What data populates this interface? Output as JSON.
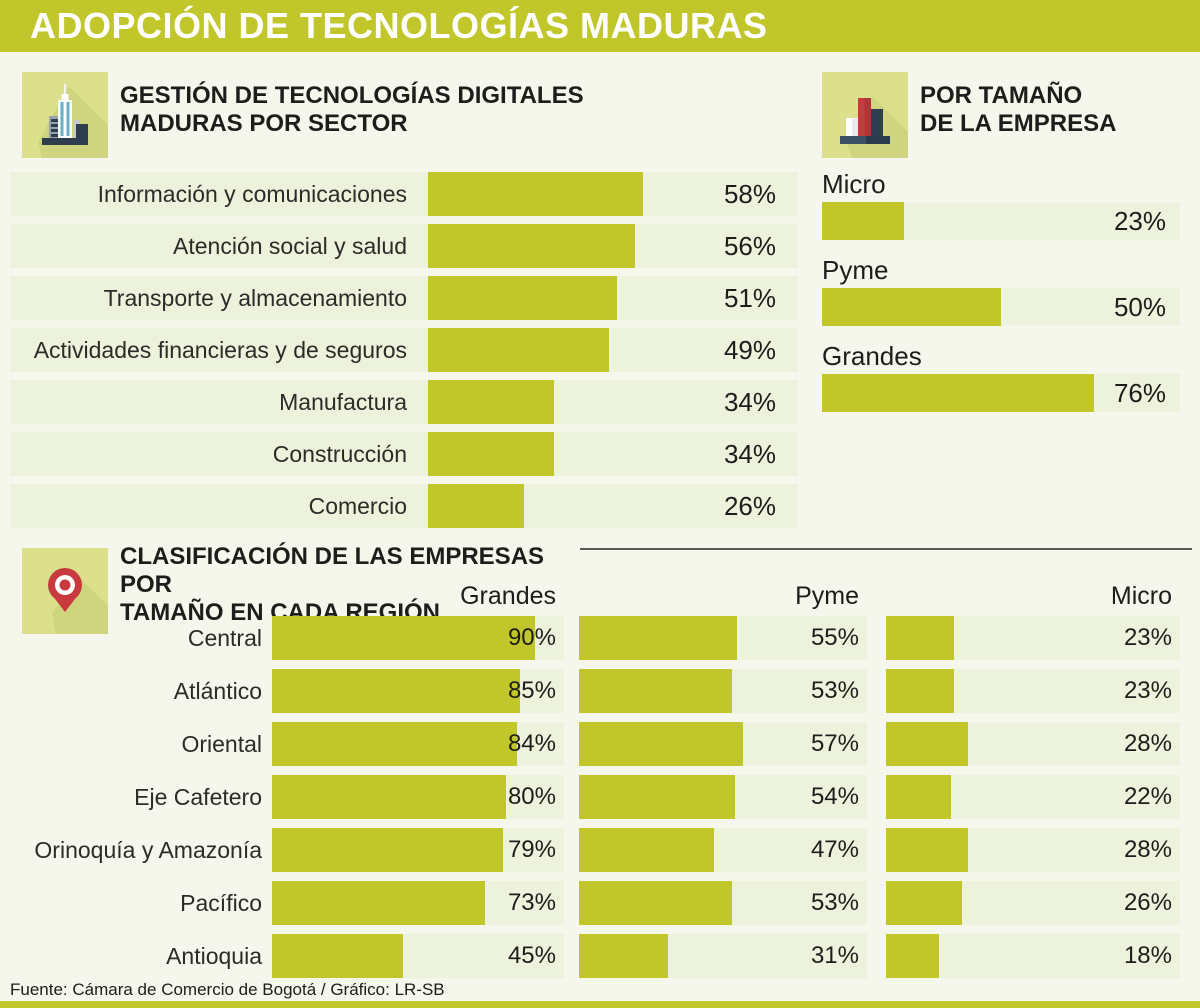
{
  "header": {
    "title": "ADOPCIÓN DE TECNOLOGÍAS MADURAS"
  },
  "footer": {
    "source": "Fuente: Cámara de Comercio de Bogotá / Gráfico: LR-SB"
  },
  "colors": {
    "accent": "#c1c62b",
    "track": "#edf2dc",
    "background": "#f5f6ec",
    "tile": "#dce08c",
    "text": "#1d1d1b"
  },
  "chart_data": [
    {
      "id": "sector",
      "type": "bar",
      "title": "GESTIÓN DE TECNOLOGÍAS DIGITALES\nMADURAS POR SECTOR",
      "icon": "city-buildings-icon",
      "unit": "%",
      "xlim": [
        0,
        100
      ],
      "categories": [
        "Información y comunicaciones",
        "Atención social y salud",
        "Transporte y almacenamiento",
        "Actividades financieras y de seguros",
        "Manufactura",
        "Construcción",
        "Comercio"
      ],
      "values": [
        58,
        56,
        51,
        49,
        34,
        34,
        26
      ]
    },
    {
      "id": "company-size",
      "type": "bar",
      "title": "POR TAMAÑO\nDE LA EMPRESA",
      "icon": "bar-chart-icon",
      "unit": "%",
      "xlim": [
        0,
        100
      ],
      "categories": [
        "Micro",
        "Pyme",
        "Grandes"
      ],
      "values": [
        23,
        50,
        76
      ]
    },
    {
      "id": "regions",
      "type": "bar",
      "title": "CLASIFICACIÓN DE LAS EMPRESAS POR\nTAMAÑO EN CADA REGIÓN",
      "icon": "location-pin-icon",
      "unit": "%",
      "xlim": [
        0,
        100
      ],
      "categories": [
        "Central",
        "Atlántico",
        "Oriental",
        "Eje Cafetero",
        "Orinoquía y Amazonía",
        "Pacífico",
        "Antioquia"
      ],
      "series": [
        {
          "name": "Grandes",
          "values": [
            90,
            85,
            84,
            80,
            79,
            73,
            45
          ]
        },
        {
          "name": "Pyme",
          "values": [
            55,
            53,
            57,
            54,
            47,
            53,
            31
          ]
        },
        {
          "name": "Micro",
          "values": [
            23,
            23,
            28,
            22,
            28,
            26,
            18
          ]
        }
      ]
    }
  ]
}
